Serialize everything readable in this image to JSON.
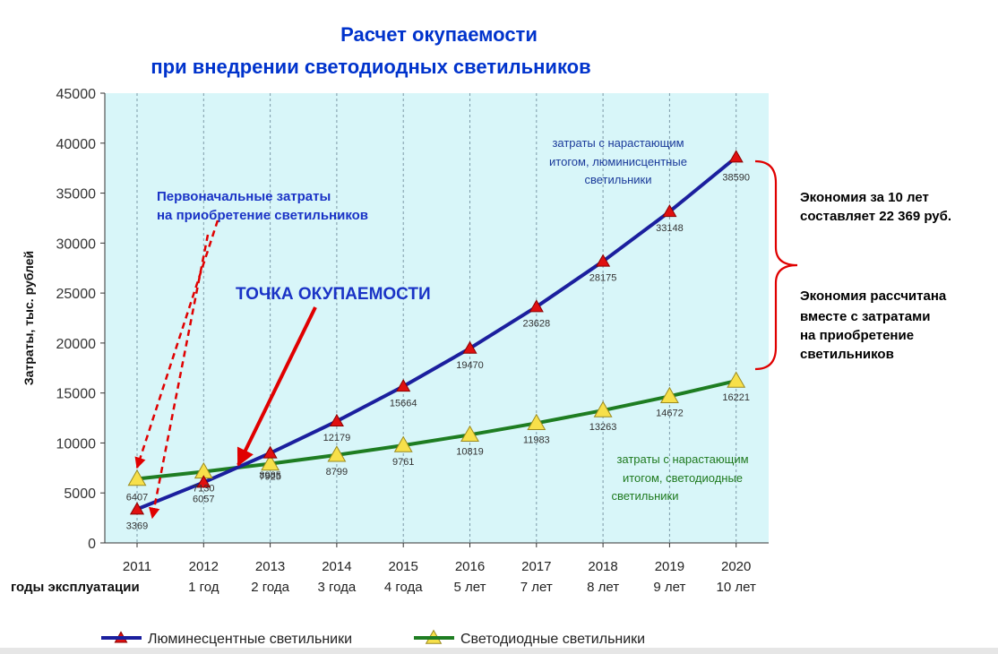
{
  "title_line1": "Расчет окупаемости",
  "title_line2": "при внедрении светодиодных светильников",
  "colors": {
    "title": "#0033cc",
    "plot_bg": "#d8f6f9",
    "grid": "#7d9aa8",
    "blue_series": "#1b1f9e",
    "green_series": "#1e7d22",
    "red_marker": "#e01010",
    "yellow_marker": "#f7e04a",
    "annotation_red": "#e00000",
    "annotation_blue": "#1a33c6",
    "label_blue": "#1a3a9a",
    "label_green": "#1f7a1f"
  },
  "annotations": {
    "initial_costs_line1": "Первоначальные затраты",
    "initial_costs_line2": "на приобретение светильников",
    "payback_point": "ТОЧКА  ОКУПАЕМОСТИ",
    "blue_series_label": [
      "затраты с нарастающим",
      "итогом, люминисцентные",
      "светильники"
    ],
    "green_series_label": [
      "затраты с нарастающим",
      "итогом, светодиодные",
      "светильники"
    ],
    "savings_line1": "Экономия за 10 лет",
    "savings_line2": "составляет 22 369 руб.",
    "savings_note": [
      "Экономия рассчитана",
      "вместе с затратами",
      "на  приобретение",
      "светильников"
    ]
  },
  "chart_data": {
    "type": "line",
    "ylabel": "Затраты, тыс. рублей",
    "xlabel": "годы эксплуатации",
    "ylim": [
      0,
      45000
    ],
    "yticks": [
      0,
      5000,
      10000,
      15000,
      20000,
      25000,
      30000,
      35000,
      40000,
      45000
    ],
    "grid": "vertical dashed",
    "categories": [
      "2011",
      "2012",
      "2013",
      "2014",
      "2015",
      "2016",
      "2017",
      "2018",
      "2019",
      "2020"
    ],
    "category_sublabels": [
      "",
      "1 год",
      "2 года",
      "3 года",
      "4 года",
      "5 лет",
      "7 лет",
      "8 лет",
      "9 лет",
      "10 лет"
    ],
    "legend_position": "bottom",
    "series": [
      {
        "name": "Люминесцентные светильники",
        "values": [
          3369,
          6057,
          8985,
          12179,
          15664,
          19470,
          23628,
          28175,
          33148,
          38590
        ],
        "data_labels": [
          "3369",
          "6057",
          "8985",
          "12179",
          "15664",
          "19470",
          "23628",
          "28175",
          "33148",
          "38590"
        ]
      },
      {
        "name": "Светодиодные светильники",
        "values": [
          6407,
          7130,
          7925,
          8799,
          9761,
          10819,
          11983,
          13263,
          14672,
          16221
        ],
        "data_labels": [
          "6407",
          "7130",
          "7925",
          "8799",
          "9761",
          "10819",
          "11983",
          "13263",
          "14672",
          "16221"
        ]
      }
    ]
  }
}
